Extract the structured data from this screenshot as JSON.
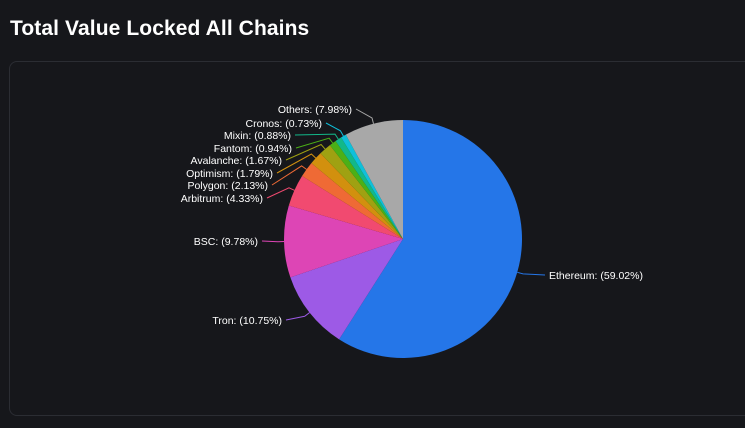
{
  "page": {
    "title": "Total Value Locked All Chains"
  },
  "chart_data": {
    "type": "pie",
    "title": "",
    "slices": [
      {
        "name": "Ethereum",
        "percent": 59.02,
        "label": "Ethereum: (59.02%)",
        "color": "#2576e8"
      },
      {
        "name": "Tron",
        "percent": 10.75,
        "label": "Tron: (10.75%)",
        "color": "#9d5ae6"
      },
      {
        "name": "BSC",
        "percent": 9.78,
        "label": "BSC: (9.78%)",
        "color": "#dd45b5"
      },
      {
        "name": "Arbitrum",
        "percent": 4.33,
        "label": "Arbitrum: (4.33%)",
        "color": "#f14a70"
      },
      {
        "name": "Polygon",
        "percent": 2.13,
        "label": "Polygon: (2.13%)",
        "color": "#ef6a35"
      },
      {
        "name": "Optimism",
        "percent": 1.79,
        "label": "Optimism: (1.79%)",
        "color": "#d2900e"
      },
      {
        "name": "Avalanche",
        "percent": 1.67,
        "label": "Avalanche: (1.67%)",
        "color": "#9fa112"
      },
      {
        "name": "Fantom",
        "percent": 0.94,
        "label": "Fantom: (0.94%)",
        "color": "#4bb016"
      },
      {
        "name": "Mixin",
        "percent": 0.88,
        "label": "Mixin: (0.88%)",
        "color": "#12b889"
      },
      {
        "name": "Cronos",
        "percent": 0.73,
        "label": "Cronos: (0.73%)",
        "color": "#0fc0da"
      },
      {
        "name": "Others",
        "percent": 7.98,
        "label": "Others: (7.98%)",
        "color": "#a8a8a8"
      }
    ],
    "start_angle": "12 o'clock",
    "direction": "clockwise",
    "label_color": "#ffffff",
    "background": "#16171b"
  }
}
